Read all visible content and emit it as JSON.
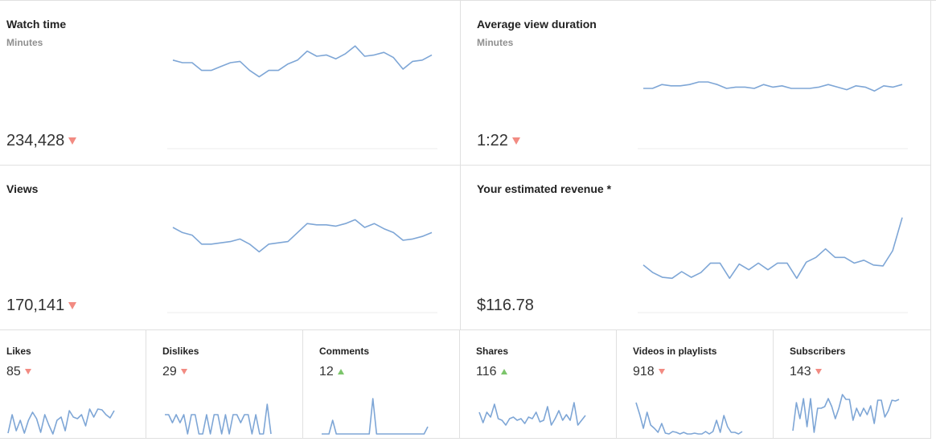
{
  "cards": {
    "watch_time": {
      "title": "Watch time",
      "subtitle": "Minutes",
      "value": "234,428",
      "trend": "down"
    },
    "avg_view_duration": {
      "title": "Average view duration",
      "subtitle": "Minutes",
      "value": "1:22",
      "trend": "down"
    },
    "views": {
      "title": "Views",
      "value": "170,141",
      "trend": "down"
    },
    "revenue": {
      "title": "Your estimated revenue *",
      "value": "$116.78",
      "trend": "none"
    },
    "likes": {
      "title": "Likes",
      "value": "85",
      "trend": "down"
    },
    "dislikes": {
      "title": "Dislikes",
      "value": "29",
      "trend": "down"
    },
    "comments": {
      "title": "Comments",
      "value": "12",
      "trend": "up"
    },
    "shares": {
      "title": "Shares",
      "value": "116",
      "trend": "up"
    },
    "playlists": {
      "title": "Videos in playlists",
      "value": "918",
      "trend": "down"
    },
    "subscribers": {
      "title": "Subscribers",
      "value": "143",
      "trend": "down"
    }
  },
  "colors": {
    "line": "#7ea6d6",
    "down": "#f28b82",
    "up": "#7cc56b"
  },
  "chart_data": [
    {
      "type": "line",
      "name": "watch_time",
      "values": [
        72,
        70,
        70,
        64,
        64,
        67,
        70,
        71,
        64,
        59,
        64,
        64,
        69,
        72,
        79,
        75,
        76,
        73,
        77,
        83,
        75,
        76,
        78,
        74,
        65,
        71,
        72,
        76
      ]
    },
    {
      "type": "line",
      "name": "avg_view_duration",
      "values": [
        50,
        50,
        53,
        52,
        52,
        53,
        55,
        55,
        53,
        50,
        51,
        51,
        50,
        53,
        51,
        52,
        50,
        50,
        50,
        51,
        53,
        51,
        49,
        52,
        51,
        48,
        52,
        51,
        53
      ]
    },
    {
      "type": "line",
      "name": "views",
      "values": [
        70,
        66,
        64,
        57,
        57,
        58,
        59,
        61,
        57,
        51,
        57,
        58,
        59,
        66,
        73,
        72,
        72,
        71,
        73,
        76,
        70,
        73,
        69,
        66,
        60,
        61,
        63,
        66
      ]
    },
    {
      "type": "line",
      "name": "revenue",
      "values": [
        18,
        10,
        5,
        4,
        11,
        5,
        10,
        20,
        20,
        4,
        19,
        13,
        20,
        13,
        20,
        20,
        4,
        21,
        26,
        35,
        26,
        26,
        20,
        23,
        18,
        17,
        33,
        68
      ]
    },
    {
      "type": "line",
      "name": "likes",
      "values": [
        2,
        25,
        5,
        18,
        2,
        18,
        28,
        20,
        3,
        25,
        12,
        1,
        18,
        22,
        5,
        30,
        22,
        20,
        25,
        11,
        32,
        22,
        32,
        31,
        25,
        21,
        30
      ]
    },
    {
      "type": "line",
      "name": "dislikes",
      "values": [
        25,
        25,
        15,
        25,
        15,
        25,
        1,
        25,
        25,
        1,
        1,
        25,
        1,
        25,
        25,
        1,
        25,
        1,
        25,
        25,
        15,
        25,
        25,
        1,
        25,
        1,
        1,
        38,
        1
      ]
    },
    {
      "type": "line",
      "name": "comments",
      "values": [
        1,
        1,
        1,
        18,
        1,
        1,
        1,
        1,
        1,
        1,
        1,
        1,
        1,
        1,
        45,
        1,
        1,
        1,
        1,
        1,
        1,
        1,
        1,
        1,
        1,
        1,
        1,
        1,
        1,
        10
      ]
    },
    {
      "type": "line",
      "name": "shares",
      "values": [
        28,
        15,
        28,
        22,
        38,
        20,
        18,
        12,
        20,
        22,
        18,
        20,
        14,
        22,
        20,
        28,
        16,
        18,
        35,
        12,
        20,
        30,
        18,
        25,
        18,
        40,
        12,
        18,
        24
      ]
    },
    {
      "type": "line",
      "name": "playlists",
      "values": [
        40,
        25,
        8,
        28,
        12,
        8,
        3,
        14,
        2,
        1,
        4,
        3,
        1,
        3,
        1,
        1,
        2,
        1,
        1,
        4,
        1,
        4,
        18,
        3,
        24,
        10,
        3,
        3,
        1,
        4
      ]
    },
    {
      "type": "line",
      "name": "subscribers",
      "values": [
        5,
        40,
        20,
        45,
        10,
        45,
        3,
        33,
        33,
        35,
        45,
        35,
        20,
        33,
        50,
        44,
        44,
        18,
        33,
        23,
        33,
        25,
        36,
        14,
        43,
        43,
        22,
        30,
        43,
        42,
        44
      ]
    }
  ]
}
